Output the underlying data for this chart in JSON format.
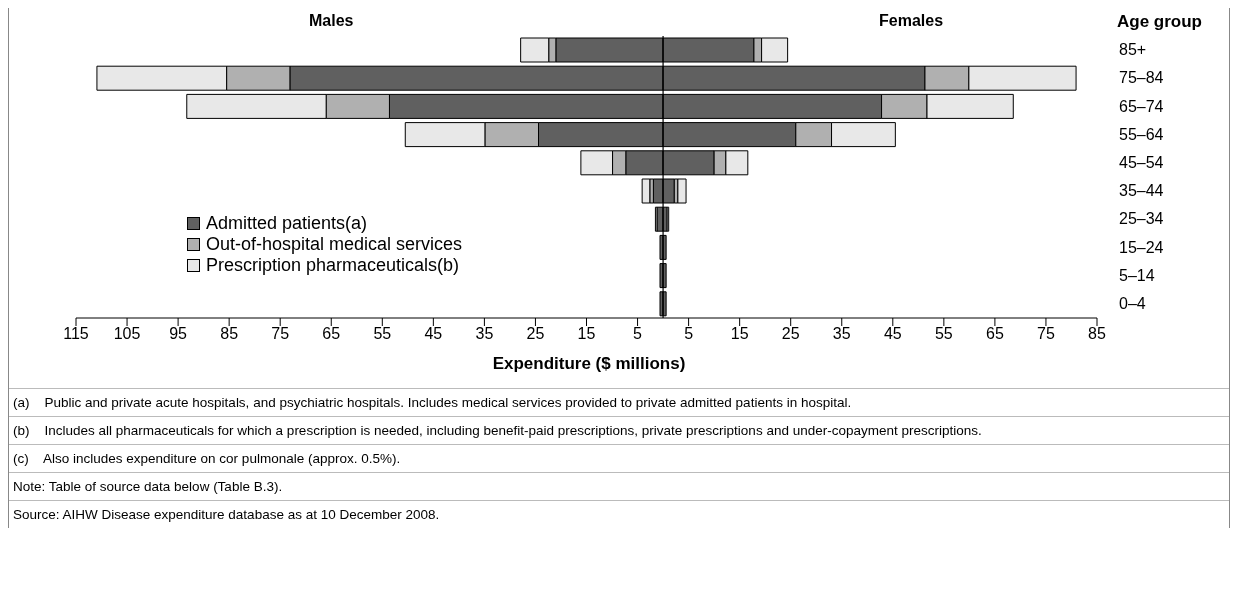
{
  "chart_data": {
    "type": "bar",
    "orientation": "horizontal",
    "stacked": true,
    "annotations": [
      "Males",
      "Females",
      "(a)    Public and private acute hospitals, and psychiatric hospitals. Includes medical services provided to private admitted patients in hospital.",
      "(b)    Includes all pharmaceuticals for which a prescription is needed, including benefit-paid prescriptions, private prescriptions and under-copayment prescriptions.",
      "(c)    Also includes expenditure on cor pulmonale (approx. 0.5%).",
      "Note: Table of source data below (Table B.3).",
      "Source: AIHW Disease expenditure database as at 10 December 2008."
    ],
    "xlabel": "Expenditure ($ millions)",
    "ylabel": "Age group",
    "categories": [
      "85+",
      "75–84",
      "65–74",
      "55–64",
      "45–54",
      "35–44",
      "25–34",
      "15–24",
      "5–14",
      "0–4"
    ],
    "series": [
      {
        "name": "Admitted patients(a)",
        "color": "#606060",
        "values": [
          -21.0,
          -73.1,
          -53.6,
          -24.4,
          -7.3,
          -1.9,
          -1.2,
          -0.6,
          -0.6,
          -0.6
        ]
      },
      {
        "name": "Out-of-hospital medical services",
        "color": "#b0b0b0",
        "values": [
          -1.4,
          -12.4,
          -12.4,
          -10.5,
          -2.6,
          -0.7,
          null,
          null,
          null,
          null
        ]
      },
      {
        "name": "Prescription pharmaceuticals(b)",
        "color": "#e8e8e8",
        "values": [
          -5.5,
          -25.4,
          -27.3,
          -15.6,
          -6.2,
          -1.5,
          -0.3,
          null,
          null,
          null
        ]
      },
      {
        "color": "#606060",
        "values": [
          17.8,
          51.3,
          42.8,
          26.0,
          10.0,
          2.2,
          0.8,
          0.6,
          0.6,
          0.6
        ]
      },
      {
        "color": "#b0b0b0",
        "values": [
          1.5,
          8.6,
          8.9,
          7.0,
          2.3,
          0.7,
          null,
          null,
          null,
          null
        ]
      },
      {
        "color": "#e8e8e8",
        "values": [
          5.1,
          21.0,
          16.9,
          12.5,
          4.3,
          1.6,
          0.3,
          null,
          null,
          null
        ]
      }
    ],
    "xlim": [
      -115,
      85
    ],
    "xticks": [
      {
        "value": -115,
        "label": "115"
      },
      {
        "value": -105,
        "label": "105"
      },
      {
        "value": -95,
        "label": "95"
      },
      {
        "value": -85,
        "label": "85"
      },
      {
        "value": -75,
        "label": "75"
      },
      {
        "value": -65,
        "label": "65"
      },
      {
        "value": -55,
        "label": "55"
      },
      {
        "value": -45,
        "label": "45"
      },
      {
        "value": -35,
        "label": "35"
      },
      {
        "value": -25,
        "label": "25"
      },
      {
        "value": -15,
        "label": "15"
      },
      {
        "value": -5,
        "label": "5"
      },
      5,
      15,
      25,
      35,
      45,
      55,
      65,
      75,
      85
    ],
    "ref_lines": [
      {
        "axis": "x",
        "value": 0
      }
    ],
    "legend": "bottom left",
    "grid": false
  }
}
